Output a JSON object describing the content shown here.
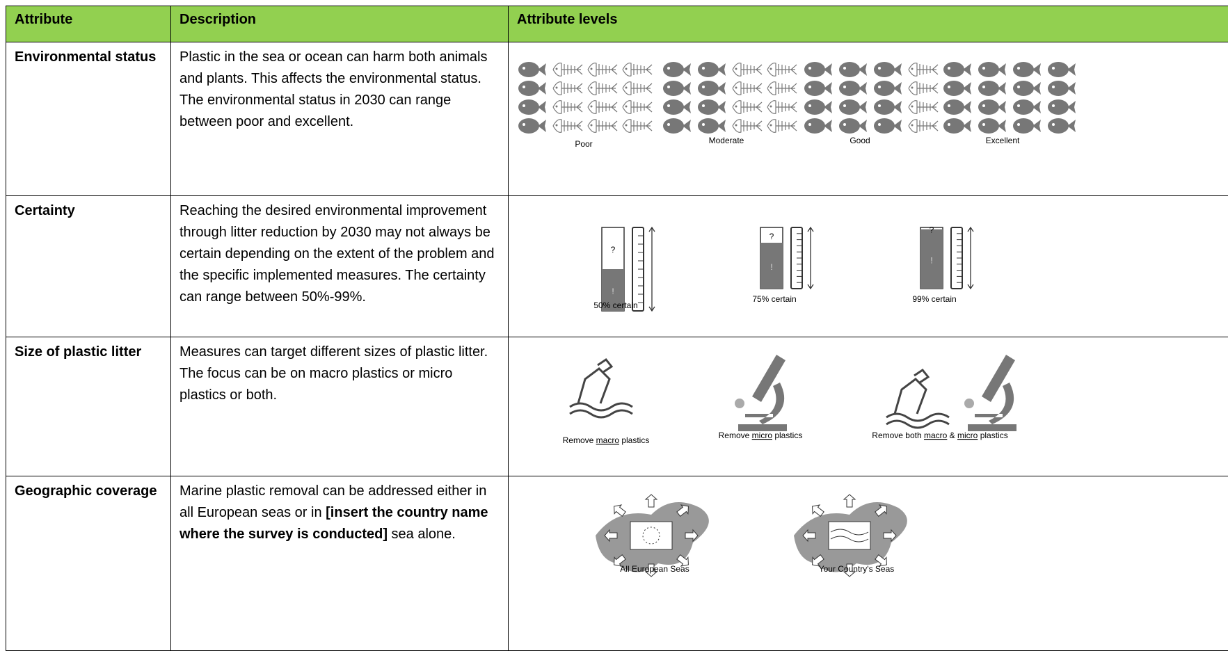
{
  "table": {
    "header": [
      "Attribute",
      "Description",
      "Attribute levels"
    ],
    "rows": [
      {
        "attribute": "Environmental status",
        "description": [
          "Plastic in the sea or ocean can harm both animals and plants. This affects the environmental status. The environmental status in 2030 can range between poor and excellent."
        ],
        "levels": [
          "Poor",
          "Moderate",
          "Good",
          "Excellent"
        ]
      },
      {
        "attribute": "Certainty",
        "description": [
          "Reaching the desired environmental improvement through litter reduction by 2030 may not always be certain depending on the extent of the problem and the specific implemented measures. The certainty can range between 50%-99%."
        ],
        "levels": [
          "50% certain",
          "75% certain",
          "99% certain"
        ],
        "icon_marks": [
          "?",
          "!"
        ]
      },
      {
        "attribute": "Size of plastic litter",
        "description": [
          "Measures can target different sizes of plastic litter. The focus can be on macro plastics or micro plastics or both."
        ],
        "levels": [
          [
            "Remove ",
            "macro",
            " plastics"
          ],
          [
            "Remove ",
            "micro",
            " plastics"
          ],
          [
            "Remove both ",
            "macro",
            " & ",
            "micro",
            " plastics"
          ]
        ]
      },
      {
        "attribute": "Geographic coverage",
        "description": [
          "Marine plastic removal can be addressed either in all European seas or in ",
          "[insert the country name where the survey is conducted]",
          " sea alone."
        ],
        "levels": [
          "All European Seas",
          "Your Country's Seas"
        ]
      }
    ]
  }
}
